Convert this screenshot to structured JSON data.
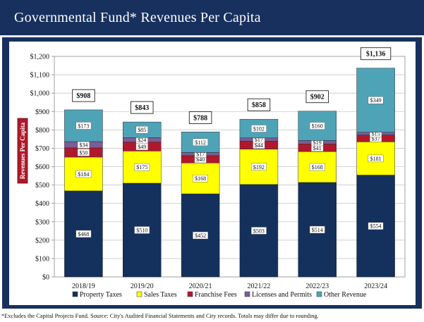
{
  "header": {
    "title": "Governmental Fund* Revenues Per Capita"
  },
  "footnote": "*Excludes the Capital Projects Fund.  Source: City's Audited Financial Statements and City records. Totals may differ due to rounding.",
  "colors": {
    "header_bg": "#17305e",
    "property_taxes": "#14305c",
    "sales_taxes": "#ffff00",
    "franchise_fees": "#b0192b",
    "licenses_permits": "#7a5d97",
    "other_revenue": "#4fa3b6"
  },
  "chart_data": {
    "type": "bar",
    "stacked": true,
    "title": "Governmental Fund* Revenues Per Capita",
    "ylabel": "Revenues Per Capita",
    "xlabel": "",
    "ylim": [
      0,
      1200
    ],
    "ytick_step": 100,
    "ytick_labels": [
      "$0",
      "$100",
      "$200",
      "$300",
      "$400",
      "$500",
      "$600",
      "$700",
      "$800",
      "$900",
      "$1,000",
      "$1,100",
      "$1,200"
    ],
    "grid": true,
    "legend_position": "bottom",
    "categories": [
      "2018/19",
      "2019/20",
      "2020/21",
      "2021/22",
      "2022/23",
      "2023/24"
    ],
    "series": [
      {
        "name": "Property Taxes",
        "color": "#14305c",
        "values": [
          468,
          510,
          452,
          503,
          514,
          554
        ],
        "labels": [
          "$468",
          "$510",
          "$452",
          "$503",
          "$514",
          "$554"
        ]
      },
      {
        "name": "Sales Taxes",
        "color": "#ffff00",
        "values": [
          184,
          175,
          168,
          192,
          168,
          181
        ],
        "labels": [
          "$184",
          "$175",
          "$168",
          "$192",
          "$168",
          "$181"
        ]
      },
      {
        "name": "Franchise Fees",
        "color": "#b0192b",
        "values": [
          50,
          49,
          40,
          44,
          41,
          37
        ],
        "labels": [
          "$50",
          "$49",
          "$40",
          "$44",
          "$41",
          "$37"
        ]
      },
      {
        "name": "Licenses and Permits",
        "color": "#7a5d97",
        "values": [
          34,
          24,
          17,
          17,
          19,
          15
        ],
        "labels": [
          "$34",
          "$24",
          "$17",
          "$17",
          "$19",
          "$15"
        ]
      },
      {
        "name": "Other Revenue",
        "color": "#4fa3b6",
        "values": [
          173,
          85,
          112,
          102,
          160,
          349
        ],
        "labels": [
          "$173",
          "$85",
          "$112",
          "$102",
          "$160",
          "$349"
        ]
      }
    ],
    "totals": [
      908,
      843,
      788,
      858,
      902,
      1136
    ],
    "total_labels": [
      "$908",
      "$843",
      "$788",
      "$858",
      "$902",
      "$1,136"
    ]
  }
}
